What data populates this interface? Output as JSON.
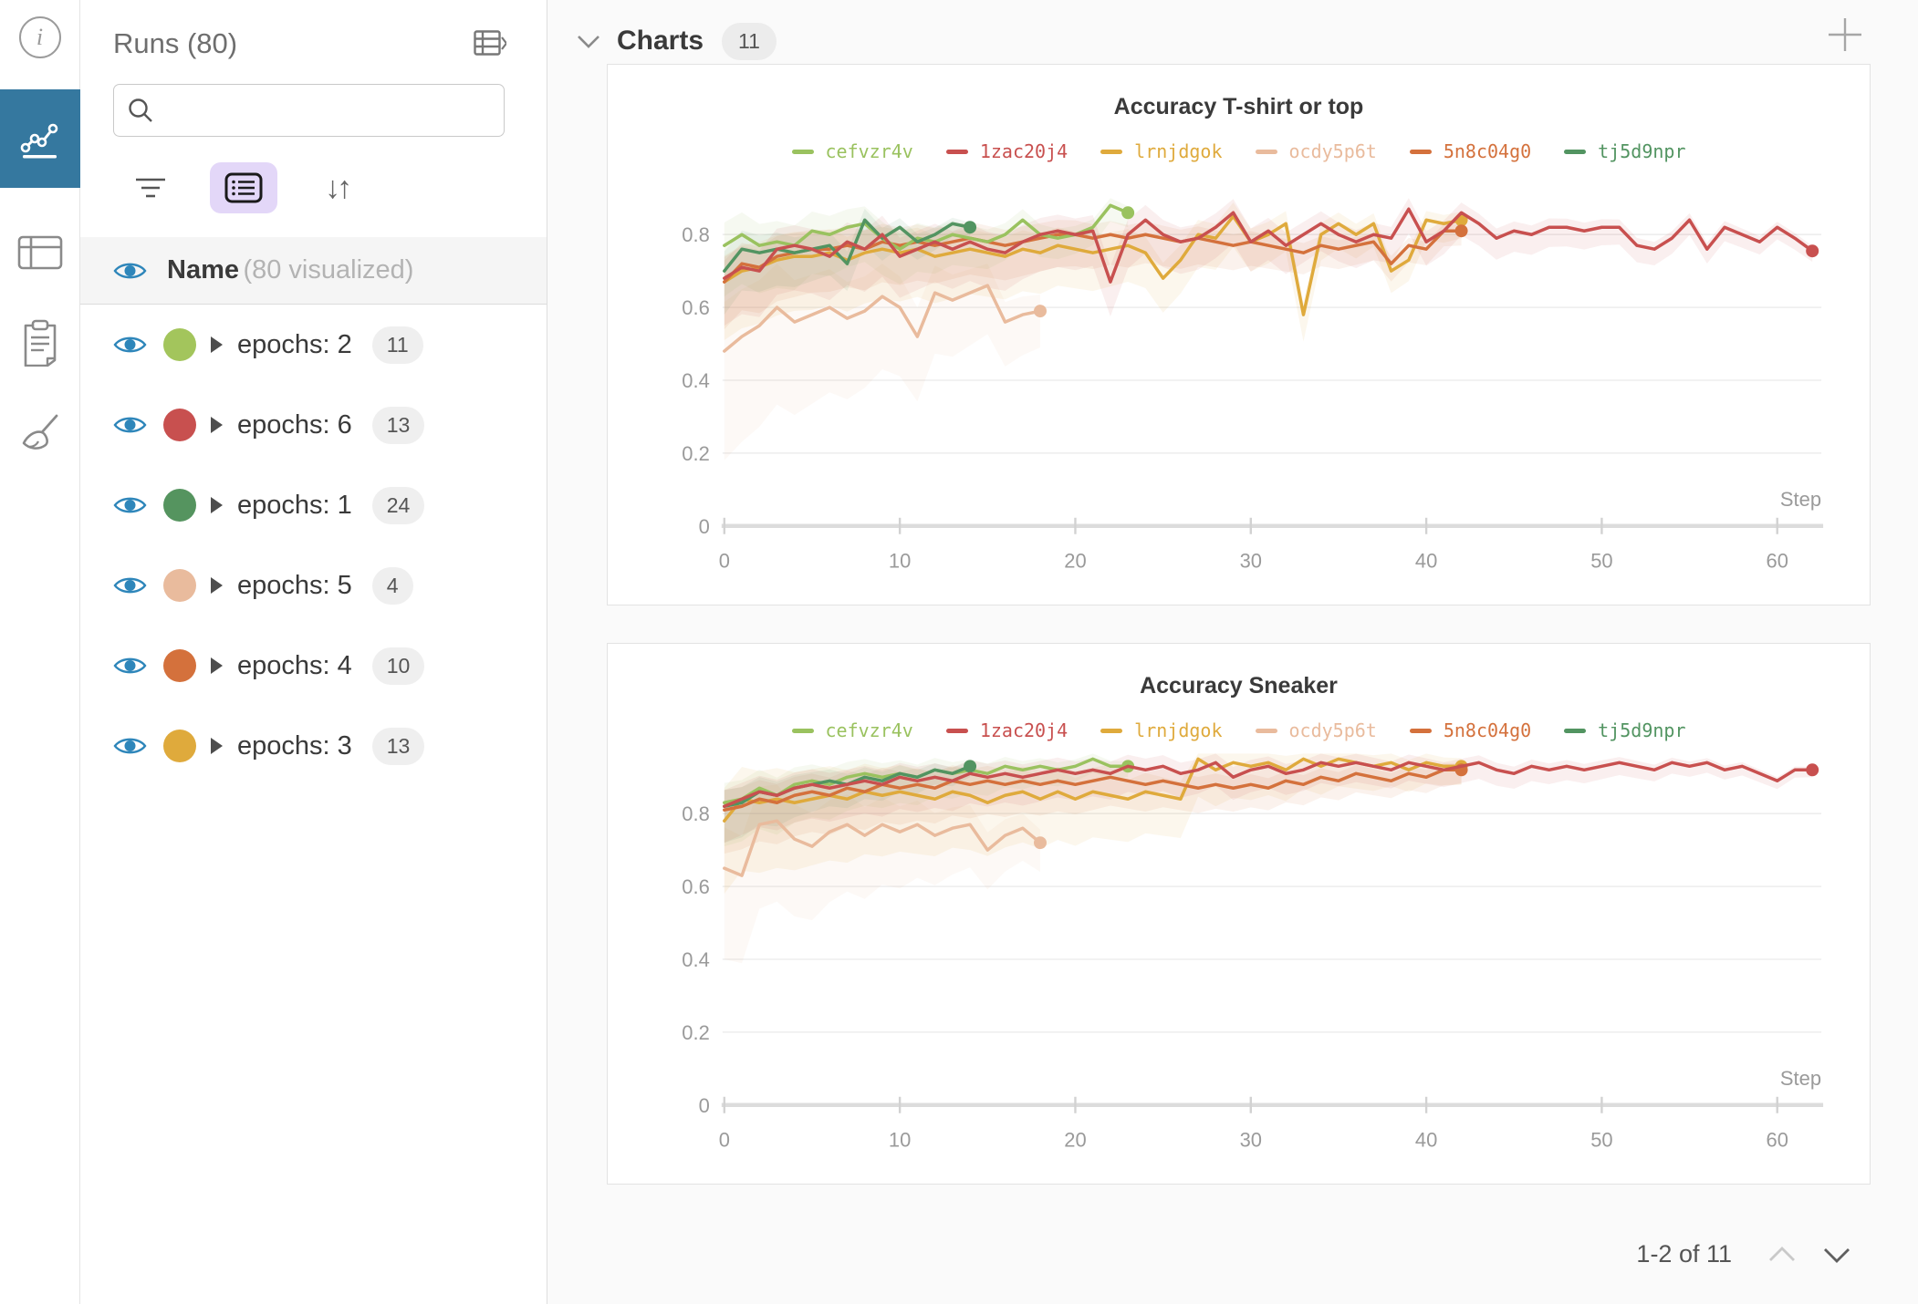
{
  "colors": {
    "nav_active_bg": "#35789f",
    "active_button_bg": "#e3d7f8",
    "eye_blue": "#2e86ba"
  },
  "sidebar_nav": {
    "items": [
      "info",
      "line-chart",
      "table",
      "clipboard",
      "brush"
    ],
    "active": "line-chart"
  },
  "runs_panel": {
    "title": "Runs (80)",
    "search": {
      "value": "",
      "placeholder": ""
    },
    "header_row": {
      "name": "Name",
      "sub": "(80 visualized)"
    },
    "runs": [
      {
        "label": "epochs: 2",
        "count": "11",
        "color": "#a3c55c"
      },
      {
        "label": "epochs: 6",
        "count": "13",
        "color": "#c8504f"
      },
      {
        "label": "epochs: 1",
        "count": "24",
        "color": "#55945f"
      },
      {
        "label": "epochs: 5",
        "count": "4",
        "color": "#e9bb9d"
      },
      {
        "label": "epochs: 4",
        "count": "10",
        "color": "#d4713c"
      },
      {
        "label": "epochs: 3",
        "count": "13",
        "color": "#dfaa3c"
      }
    ]
  },
  "main": {
    "header": {
      "title": "Charts",
      "badge": "11"
    },
    "pagination": {
      "label": "1-2 of 11"
    }
  },
  "chart_data": [
    {
      "type": "line",
      "title": "Accuracy T-shirt or top",
      "xlabel": "Step",
      "ylabel": "",
      "ylim": [
        0,
        0.95
      ],
      "xticks": [
        0,
        10,
        20,
        30,
        40,
        50,
        60
      ],
      "yticks": [
        0,
        0.2,
        0.4,
        0.6,
        0.8
      ],
      "grid": "horizontal",
      "legend_position": "top",
      "series": [
        {
          "name": "cefvzr4v",
          "color": "#9ac25f",
          "band": {
            "start": 0.14,
            "end": 0.04
          },
          "values": [
            0.77,
            0.8,
            0.77,
            0.78,
            0.77,
            0.81,
            0.8,
            0.82,
            0.83,
            0.79,
            0.76,
            0.79,
            0.78,
            0.8,
            0.79,
            0.78,
            0.8,
            0.84,
            0.8,
            0.79,
            0.8,
            0.82,
            0.88,
            0.86
          ]
        },
        {
          "name": "1zac20j4",
          "color": "#c8504f",
          "band": {
            "start": 0.13,
            "end": 0.03
          },
          "values": [
            0.68,
            0.71,
            0.7,
            0.76,
            0.77,
            0.76,
            0.74,
            0.78,
            0.76,
            0.8,
            0.74,
            0.76,
            0.78,
            0.76,
            0.78,
            0.76,
            0.75,
            0.78,
            0.8,
            0.81,
            0.8,
            0.81,
            0.67,
            0.8,
            0.84,
            0.8,
            0.78,
            0.79,
            0.82,
            0.86,
            0.78,
            0.81,
            0.77,
            0.8,
            0.83,
            0.8,
            0.78,
            0.8,
            0.79,
            0.87,
            0.78,
            0.81,
            0.86,
            0.83,
            0.79,
            0.81,
            0.8,
            0.82,
            0.82,
            0.81,
            0.82,
            0.82,
            0.77,
            0.76,
            0.79,
            0.84,
            0.76,
            0.82,
            0.8,
            0.78,
            0.82,
            0.79,
            0.755
          ]
        },
        {
          "name": "lrnjdgok",
          "color": "#dfaa3c",
          "band": {
            "start": 0.16,
            "end": 0.05
          },
          "values": [
            0.67,
            0.7,
            0.71,
            0.73,
            0.74,
            0.74,
            0.75,
            0.73,
            0.75,
            0.76,
            0.75,
            0.76,
            0.74,
            0.75,
            0.76,
            0.75,
            0.74,
            0.76,
            0.75,
            0.77,
            0.76,
            0.75,
            0.76,
            0.77,
            0.75,
            0.68,
            0.73,
            0.8,
            0.79,
            0.85,
            0.78,
            0.8,
            0.83,
            0.58,
            0.8,
            0.83,
            0.8,
            0.83,
            0.7,
            0.73,
            0.84,
            0.83,
            0.84
          ]
        },
        {
          "name": "ocdy5p6t",
          "color": "#e9bb9d",
          "band": {
            "start": 0.3,
            "end": 0.1
          },
          "values": [
            0.48,
            0.52,
            0.55,
            0.6,
            0.56,
            0.58,
            0.6,
            0.57,
            0.59,
            0.63,
            0.6,
            0.52,
            0.64,
            0.62,
            0.64,
            0.66,
            0.56,
            0.58,
            0.59
          ]
        },
        {
          "name": "5n8c04g0",
          "color": "#d4713c",
          "band": {
            "start": 0.13,
            "end": 0.04
          },
          "values": [
            0.67,
            0.72,
            0.71,
            0.74,
            0.75,
            0.76,
            0.76,
            0.77,
            0.76,
            0.78,
            0.77,
            0.78,
            0.77,
            0.78,
            0.79,
            0.78,
            0.77,
            0.78,
            0.79,
            0.8,
            0.8,
            0.79,
            0.8,
            0.79,
            0.8,
            0.79,
            0.78,
            0.79,
            0.78,
            0.77,
            0.78,
            0.77,
            0.76,
            0.75,
            0.77,
            0.76,
            0.77,
            0.78,
            0.72,
            0.77,
            0.76,
            0.81,
            0.81
          ]
        },
        {
          "name": "tj5d9npr",
          "color": "#529461",
          "band": {
            "start": 0.12,
            "end": 0.03
          },
          "values": [
            0.7,
            0.76,
            0.75,
            0.76,
            0.75,
            0.76,
            0.77,
            0.72,
            0.84,
            0.79,
            0.82,
            0.78,
            0.8,
            0.83,
            0.82
          ]
        }
      ]
    },
    {
      "type": "line",
      "title": "Accuracy Sneaker",
      "xlabel": "Step",
      "ylabel": "",
      "ylim": [
        0,
        0.95
      ],
      "xticks": [
        0,
        10,
        20,
        30,
        40,
        50,
        60
      ],
      "yticks": [
        0,
        0.2,
        0.4,
        0.6,
        0.8
      ],
      "grid": "horizontal",
      "legend_position": "top",
      "series": [
        {
          "name": "cefvzr4v",
          "color": "#9ac25f",
          "band": {
            "start": 0.12,
            "end": 0.03
          },
          "values": [
            0.83,
            0.84,
            0.87,
            0.85,
            0.88,
            0.89,
            0.88,
            0.9,
            0.91,
            0.9,
            0.91,
            0.9,
            0.92,
            0.91,
            0.92,
            0.91,
            0.93,
            0.92,
            0.93,
            0.92,
            0.93,
            0.95,
            0.93,
            0.93
          ]
        },
        {
          "name": "1zac20j4",
          "color": "#c8504f",
          "band": {
            "start": 0.1,
            "end": 0.02
          },
          "values": [
            0.82,
            0.84,
            0.86,
            0.85,
            0.87,
            0.88,
            0.87,
            0.88,
            0.89,
            0.88,
            0.9,
            0.89,
            0.9,
            0.89,
            0.91,
            0.9,
            0.91,
            0.9,
            0.91,
            0.92,
            0.91,
            0.92,
            0.91,
            0.93,
            0.92,
            0.93,
            0.91,
            0.92,
            0.94,
            0.9,
            0.92,
            0.93,
            0.91,
            0.92,
            0.94,
            0.93,
            0.94,
            0.93,
            0.92,
            0.94,
            0.93,
            0.92,
            0.93,
            0.94,
            0.92,
            0.91,
            0.93,
            0.92,
            0.93,
            0.92,
            0.93,
            0.94,
            0.93,
            0.92,
            0.94,
            0.93,
            0.94,
            0.92,
            0.93,
            0.91,
            0.89,
            0.92,
            0.92
          ]
        },
        {
          "name": "lrnjdgok",
          "color": "#dfaa3c",
          "band": {
            "start": 0.2,
            "end": 0.05
          },
          "values": [
            0.78,
            0.84,
            0.83,
            0.84,
            0.83,
            0.84,
            0.85,
            0.84,
            0.86,
            0.85,
            0.86,
            0.85,
            0.84,
            0.86,
            0.85,
            0.83,
            0.85,
            0.86,
            0.84,
            0.86,
            0.84,
            0.86,
            0.85,
            0.84,
            0.86,
            0.85,
            0.84,
            0.95,
            0.92,
            0.94,
            0.93,
            0.94,
            0.92,
            0.95,
            0.93,
            0.95,
            0.94,
            0.93,
            0.94,
            0.92,
            0.94,
            0.93,
            0.93
          ]
        },
        {
          "name": "ocdy5p6t",
          "color": "#e9bb9d",
          "band": {
            "start": 0.25,
            "end": 0.08
          },
          "values": [
            0.65,
            0.63,
            0.77,
            0.78,
            0.73,
            0.71,
            0.75,
            0.77,
            0.74,
            0.77,
            0.75,
            0.77,
            0.74,
            0.76,
            0.77,
            0.7,
            0.74,
            0.76,
            0.72
          ]
        },
        {
          "name": "5n8c04g0",
          "color": "#d4713c",
          "band": {
            "start": 0.12,
            "end": 0.04
          },
          "values": [
            0.81,
            0.82,
            0.84,
            0.83,
            0.85,
            0.86,
            0.85,
            0.87,
            0.86,
            0.88,
            0.87,
            0.88,
            0.87,
            0.89,
            0.88,
            0.89,
            0.88,
            0.89,
            0.88,
            0.89,
            0.88,
            0.89,
            0.9,
            0.89,
            0.88,
            0.89,
            0.88,
            0.87,
            0.88,
            0.87,
            0.88,
            0.87,
            0.89,
            0.88,
            0.9,
            0.89,
            0.91,
            0.9,
            0.89,
            0.91,
            0.9,
            0.92,
            0.92
          ]
        },
        {
          "name": "tj5d9npr",
          "color": "#529461",
          "band": {
            "start": 0.1,
            "end": 0.03
          },
          "values": [
            0.82,
            0.83,
            0.86,
            0.85,
            0.87,
            0.88,
            0.89,
            0.88,
            0.9,
            0.89,
            0.91,
            0.9,
            0.92,
            0.91,
            0.93
          ]
        }
      ]
    }
  ]
}
